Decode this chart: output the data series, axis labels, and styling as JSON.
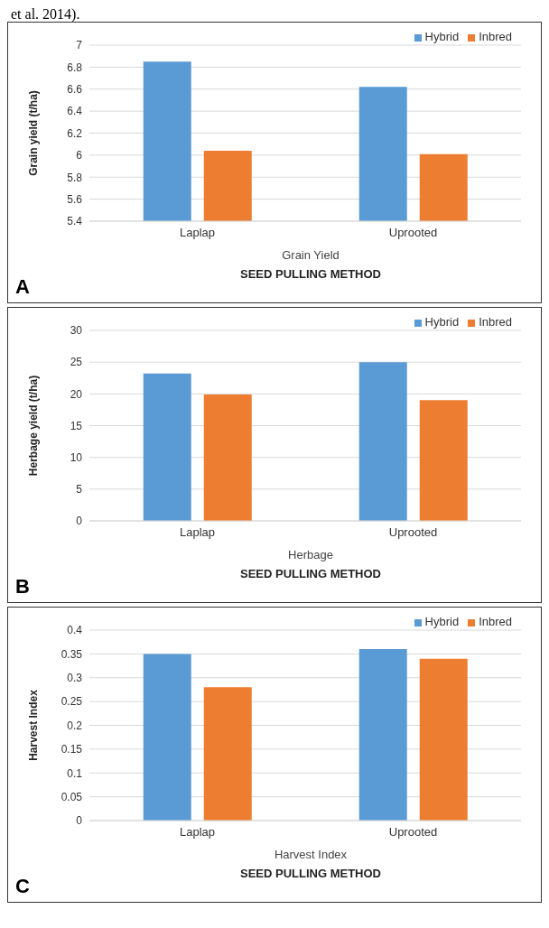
{
  "chart_data": [
    {
      "type": "bar",
      "categories": [
        "Laplap",
        "Uprooted"
      ],
      "ylabel": "Grain yield (t/ha)",
      "subtitle": "Grain Yield",
      "xlabel": "SEED PULLING METHOD",
      "annotations": [
        "et al. 2014).",
        "A"
      ],
      "series": [
        {
          "name": "Hybrid",
          "color": "#5b9bd5",
          "values": [
            6.85,
            6.62
          ]
        },
        {
          "name": "Inbred",
          "color": "#ed7d31",
          "values": [
            6.04,
            6.01
          ]
        }
      ],
      "ylim": [
        5.4,
        7
      ],
      "yticks": [
        5.4,
        5.6,
        5.8,
        6,
        6.2,
        6.4,
        6.6,
        6.8,
        7
      ],
      "grid": "y",
      "legend": "top right"
    },
    {
      "type": "bar",
      "categories": [
        "Laplap",
        "Uprooted"
      ],
      "ylabel": "Herbage yield (t/ha)",
      "subtitle": "Herbage",
      "xlabel": "SEED PULLING METHOD",
      "annotations": [
        "B"
      ],
      "series": [
        {
          "name": "Hybrid",
          "color": "#5b9bd5",
          "values": [
            23.2,
            25
          ]
        },
        {
          "name": "Inbred",
          "color": "#ed7d31",
          "values": [
            19.9,
            19
          ]
        }
      ],
      "ylim": [
        0,
        30
      ],
      "yticks": [
        0,
        5,
        10,
        15,
        20,
        25,
        30
      ],
      "grid": "y",
      "legend": "top right"
    },
    {
      "type": "bar",
      "categories": [
        "Laplap",
        "Uprooted"
      ],
      "ylabel": "Harvest Index",
      "subtitle": "Harvest Index",
      "xlabel": "SEED PULLING METHOD",
      "annotations": [
        "C"
      ],
      "series": [
        {
          "name": "Hybrid",
          "color": "#5b9bd5",
          "values": [
            0.35,
            0.36
          ]
        },
        {
          "name": "Inbred",
          "color": "#ed7d31",
          "values": [
            0.28,
            0.34
          ]
        }
      ],
      "ylim": [
        0,
        0.4
      ],
      "yticks": [
        0,
        0.05,
        0.1,
        0.15,
        0.2,
        0.25,
        0.3,
        0.35,
        0.4
      ],
      "grid": "y",
      "legend": "top right"
    }
  ]
}
